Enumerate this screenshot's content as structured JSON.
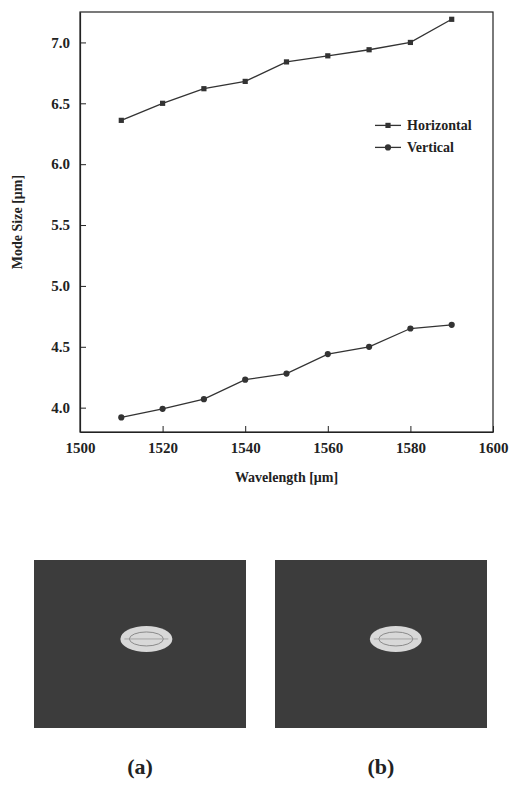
{
  "chart_data": {
    "type": "line",
    "x_label": "Wavelength [μm]",
    "y_label": "Mode Size [μm]",
    "x": [
      1510,
      1520,
      1530,
      1540,
      1550,
      1560,
      1570,
      1580,
      1590
    ],
    "series": [
      {
        "name": "Horizontal",
        "color": "#333333",
        "marker": "square",
        "line_style": "solid",
        "values": [
          6.36,
          6.5,
          6.62,
          6.68,
          6.84,
          6.89,
          6.94,
          7.0,
          7.19
        ]
      },
      {
        "name": "Vertical",
        "color": "#333333",
        "marker": "circle",
        "line_style": "solid",
        "values": [
          3.92,
          3.99,
          4.07,
          4.23,
          4.28,
          4.44,
          4.5,
          4.65,
          4.68
        ]
      }
    ],
    "xlim": [
      1500,
      1600
    ],
    "xticks": [
      1500,
      1520,
      1540,
      1560,
      1580,
      1600
    ],
    "ylim": [
      3.8,
      7.25
    ],
    "yticks": [
      {
        "value": 4,
        "label": "4.0"
      },
      {
        "value": 4.5,
        "label": "4.5"
      },
      {
        "value": 5,
        "label": "5.0"
      },
      {
        "value": 5.5,
        "label": "5.5"
      },
      {
        "value": 6,
        "label": "6.0"
      },
      {
        "value": 6.5,
        "label": "6.5"
      },
      {
        "value": 7,
        "label": "7.0"
      }
    ],
    "legend": "center right",
    "grid": false
  },
  "images": {
    "labels": [
      "(a)",
      "(b)"
    ]
  }
}
